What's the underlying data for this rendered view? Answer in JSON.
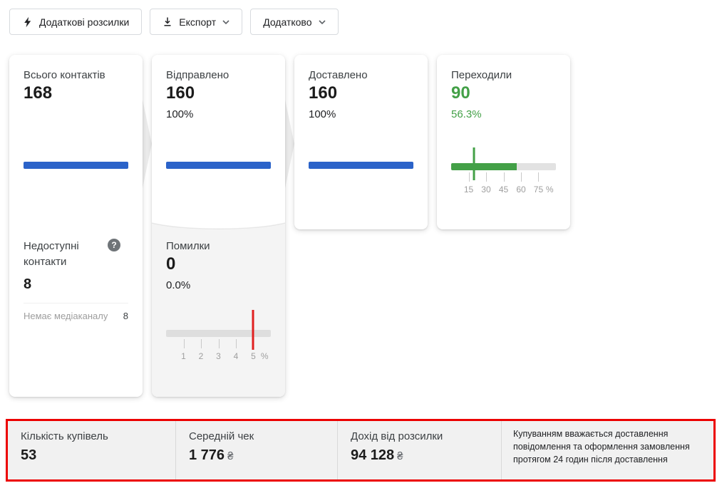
{
  "toolbar": {
    "extra_campaigns_label": "Додаткові розсилки",
    "export_label": "Експорт",
    "more_label": "Додатково"
  },
  "funnel": {
    "total": {
      "title": "Всього контактів",
      "value": "168",
      "fill_pct": 100
    },
    "unavailable": {
      "title": "Недоступні контакти",
      "value": "8",
      "row_label": "Немає медіаканалу",
      "row_value": "8"
    },
    "sent": {
      "title": "Відправлено",
      "value": "160",
      "percent": "100%",
      "fill_pct": 100
    },
    "errors": {
      "title": "Помилки",
      "value": "0",
      "percent": "0.0%",
      "fill_pct": 0,
      "marker_pct": 83.3,
      "ticks": [
        "1",
        "2",
        "3",
        "4",
        "5",
        "%"
      ]
    },
    "delivered": {
      "title": "Доставлено",
      "value": "160",
      "percent": "100%",
      "fill_pct": 100
    },
    "clicked": {
      "title": "Переходили",
      "value": "90",
      "percent": "56.3%",
      "fill_pct": 62.5,
      "marker_pct": 22,
      "ticks": [
        "15",
        "30",
        "45",
        "60",
        "75",
        "%"
      ]
    }
  },
  "summary": {
    "purchases_label": "Кількість купівель",
    "purchases_value": "53",
    "avg_label": "Середній чек",
    "avg_value": "1 776",
    "avg_currency": "₴",
    "revenue_label": "Дохід від розсилки",
    "revenue_value": "94 128",
    "revenue_currency": "₴",
    "note": "Купуванням вважається доставлення повідомлення та оформлення замовлення протягом 24 годин після доставлення"
  },
  "icons": {
    "help_glyph": "?"
  },
  "colors": {
    "bar_blue": "#2b63c9",
    "accent_green": "#43a047",
    "marker_red": "#e02020",
    "highlight_border": "#ec0000",
    "errors_bg": "#f4f4f4"
  }
}
